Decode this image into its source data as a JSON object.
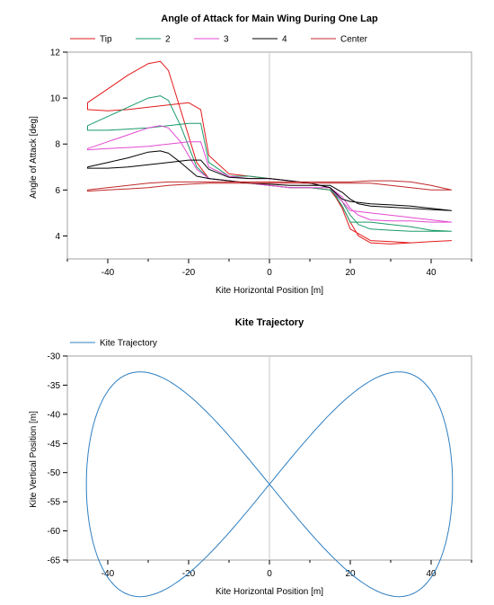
{
  "chart_data": [
    {
      "type": "line",
      "title": "Angle of Attack for Main Wing During One Lap",
      "xlabel": "Kite Horizontal Position [m]",
      "ylabel": "Angle of Attack [deg]",
      "xlim": [
        -50,
        50
      ],
      "ylim": [
        3,
        12
      ],
      "xticks": [
        -40,
        -20,
        0,
        20,
        40
      ],
      "yticks": [
        4,
        6,
        8,
        10,
        12
      ],
      "legend_position": "top-left",
      "grid": false,
      "series": [
        {
          "name": "Tip",
          "color": "#e31a1c",
          "x": [
            -45,
            -40,
            -35,
            -30,
            -27,
            -25,
            -22,
            -18,
            -15,
            -10,
            -5,
            0,
            5,
            10,
            15,
            18,
            20,
            22,
            25,
            30,
            35,
            40,
            45,
            40,
            35,
            30,
            25,
            20,
            18,
            15,
            10,
            5,
            0,
            -5,
            -10,
            -15,
            -17,
            -20,
            -25,
            -30,
            -35,
            -40,
            -45,
            -45
          ],
          "y": [
            9.8,
            10.4,
            11.0,
            11.5,
            11.6,
            11.2,
            9.5,
            7.2,
            6.5,
            6.4,
            6.3,
            6.2,
            6.1,
            6.1,
            6.0,
            5.3,
            4.6,
            4.0,
            3.7,
            3.65,
            3.7,
            3.75,
            3.8,
            3.75,
            3.7,
            3.75,
            3.8,
            4.3,
            5.2,
            6.1,
            6.3,
            6.4,
            6.5,
            6.6,
            6.7,
            7.5,
            9.5,
            9.8,
            9.7,
            9.6,
            9.5,
            9.45,
            9.5,
            9.8
          ]
        },
        {
          "name": "2",
          "color": "#1a9b6a",
          "x": [
            -45,
            -40,
            -35,
            -30,
            -27,
            -25,
            -22,
            -18,
            -15,
            -10,
            -5,
            0,
            5,
            10,
            15,
            18,
            20,
            22,
            25,
            30,
            35,
            40,
            45,
            40,
            35,
            30,
            25,
            20,
            18,
            15,
            10,
            5,
            0,
            -5,
            -10,
            -15,
            -17,
            -20,
            -25,
            -30,
            -35,
            -40,
            -45,
            -45
          ],
          "y": [
            8.8,
            9.2,
            9.6,
            10.0,
            10.1,
            9.9,
            8.8,
            7.0,
            6.5,
            6.4,
            6.3,
            6.2,
            6.1,
            6.1,
            6.0,
            5.5,
            4.9,
            4.5,
            4.3,
            4.25,
            4.2,
            4.2,
            4.2,
            4.25,
            4.4,
            4.5,
            4.6,
            4.6,
            5.3,
            6.1,
            6.3,
            6.4,
            6.5,
            6.6,
            6.6,
            7.2,
            8.9,
            8.9,
            8.8,
            8.7,
            8.65,
            8.6,
            8.6,
            8.8
          ]
        },
        {
          "name": "3",
          "color": "#e24ad1",
          "x": [
            -45,
            -40,
            -35,
            -30,
            -27,
            -25,
            -22,
            -18,
            -15,
            -10,
            -5,
            0,
            5,
            10,
            15,
            18,
            20,
            22,
            25,
            30,
            35,
            40,
            45,
            40,
            35,
            30,
            25,
            20,
            18,
            15,
            10,
            5,
            0,
            -5,
            -10,
            -15,
            -17,
            -20,
            -25,
            -30,
            -35,
            -40,
            -45,
            -45
          ],
          "y": [
            7.8,
            8.1,
            8.4,
            8.7,
            8.8,
            8.7,
            8.1,
            6.9,
            6.5,
            6.4,
            6.3,
            6.2,
            6.1,
            6.1,
            6.1,
            5.7,
            5.2,
            4.9,
            4.7,
            4.65,
            4.65,
            4.6,
            4.6,
            4.7,
            4.8,
            4.9,
            5.0,
            5.1,
            5.5,
            6.1,
            6.3,
            6.4,
            6.5,
            6.5,
            6.6,
            7.0,
            8.1,
            8.1,
            8.0,
            7.9,
            7.85,
            7.8,
            7.75,
            7.8
          ]
        },
        {
          "name": "4",
          "color": "#000000",
          "x": [
            -45,
            -40,
            -35,
            -30,
            -27,
            -25,
            -22,
            -18,
            -15,
            -10,
            -5,
            0,
            5,
            10,
            15,
            18,
            20,
            22,
            25,
            30,
            35,
            40,
            45,
            40,
            35,
            30,
            25,
            20,
            18,
            15,
            10,
            5,
            0,
            -5,
            -10,
            -15,
            -17,
            -20,
            -25,
            -30,
            -35,
            -40,
            -45,
            -45
          ],
          "y": [
            7.0,
            7.2,
            7.4,
            7.65,
            7.7,
            7.6,
            7.2,
            6.6,
            6.5,
            6.4,
            6.3,
            6.25,
            6.2,
            6.2,
            6.2,
            5.9,
            5.6,
            5.4,
            5.3,
            5.25,
            5.2,
            5.15,
            5.1,
            5.2,
            5.3,
            5.35,
            5.4,
            5.5,
            5.6,
            6.1,
            6.3,
            6.4,
            6.5,
            6.5,
            6.55,
            6.9,
            7.3,
            7.3,
            7.2,
            7.1,
            7.0,
            6.95,
            6.95,
            7.0
          ]
        },
        {
          "name": "Center",
          "color": "#c0292b",
          "x": [
            -45,
            -40,
            -35,
            -30,
            -25,
            -20,
            -15,
            -10,
            -5,
            0,
            5,
            10,
            15,
            20,
            25,
            30,
            35,
            40,
            45,
            40,
            35,
            30,
            25,
            20,
            15,
            10,
            5,
            0,
            -5,
            -10,
            -15,
            -20,
            -25,
            -30,
            -35,
            -40,
            -45,
            -45
          ],
          "y": [
            6.0,
            6.1,
            6.2,
            6.3,
            6.35,
            6.35,
            6.35,
            6.35,
            6.35,
            6.35,
            6.35,
            6.35,
            6.35,
            6.35,
            6.4,
            6.4,
            6.35,
            6.2,
            6.0,
            6.0,
            6.1,
            6.2,
            6.3,
            6.3,
            6.3,
            6.3,
            6.3,
            6.3,
            6.3,
            6.3,
            6.3,
            6.25,
            6.2,
            6.1,
            6.05,
            6.0,
            5.95,
            6.0
          ]
        }
      ]
    },
    {
      "type": "line",
      "title": "Kite Trajectory",
      "xlabel": "Kite Horizontal Position [m]",
      "ylabel": "Kite Vertical Position [m]",
      "xlim": [
        -50,
        50
      ],
      "ylim": [
        -65,
        -30
      ],
      "xticks": [
        -40,
        -20,
        0,
        20,
        40
      ],
      "yticks": [
        -30,
        -35,
        -40,
        -45,
        -50,
        -55,
        -60,
        -65
      ],
      "legend_position": "top-left",
      "grid": false,
      "series": [
        {
          "name": "Kite Trajectory",
          "color": "#2f7fc1",
          "lemniscate": {
            "a": 45.3,
            "b": 23.5,
            "center_y": -52.0,
            "min_y_offset": 0
          }
        }
      ]
    }
  ]
}
